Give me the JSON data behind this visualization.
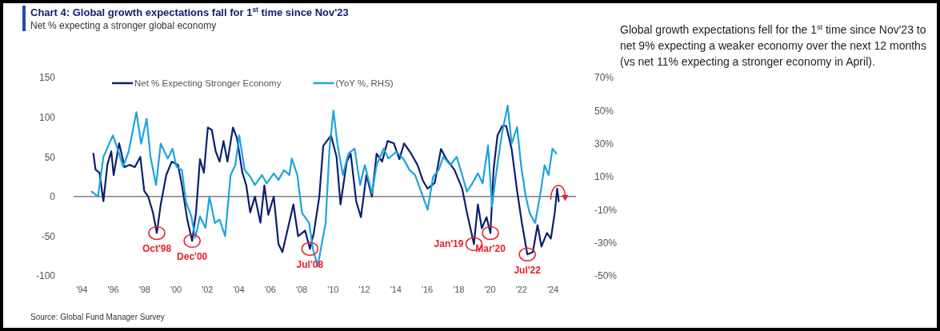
{
  "chart_data": {
    "type": "line",
    "title": "Chart 4: Global growth expectations fall for 1$^{st}$ time since Nov'23",
    "subtitle": "Net % expecting a stronger global economy",
    "xlim": [
      1993.5,
      2025.5
    ],
    "xticks": [
      {
        "value": 1994,
        "label": "'94"
      },
      {
        "value": 1996,
        "label": "'96"
      },
      {
        "value": 1998,
        "label": "'98"
      },
      {
        "value": 2000,
        "label": "'00"
      },
      {
        "value": 2002,
        "label": "'02"
      },
      {
        "value": 2004,
        "label": "'04"
      },
      {
        "value": 2006,
        "label": "'06"
      },
      {
        "value": 2008,
        "label": "'08"
      },
      {
        "value": 2010,
        "label": "'10"
      },
      {
        "value": 2012,
        "label": "'12"
      },
      {
        "value": 2014,
        "label": "'14"
      },
      {
        "value": 2016,
        "label": "'16"
      },
      {
        "value": 2018,
        "label": "'18"
      },
      {
        "value": 2020,
        "label": "'20"
      },
      {
        "value": 2022,
        "label": "'22"
      },
      {
        "value": 2024,
        "label": "'24"
      }
    ],
    "ylim": [
      -100,
      150
    ],
    "yticks": [
      -100,
      -50,
      0,
      50,
      100,
      150
    ],
    "y2lim": [
      -50,
      70
    ],
    "y2ticks": [
      {
        "value": -50,
        "label": "-50%"
      },
      {
        "value": -30,
        "label": "-30%"
      },
      {
        "value": -10,
        "label": "-10%"
      },
      {
        "value": 10,
        "label": "10%"
      },
      {
        "value": 30,
        "label": "30%"
      },
      {
        "value": 50,
        "label": "50%"
      },
      {
        "value": 70,
        "label": "70%"
      }
    ],
    "grid": false,
    "legend": "top",
    "line_style": "solid",
    "marker": "none",
    "ref_lines": [
      {
        "axis": "y",
        "value": 0,
        "color": "#808080"
      }
    ],
    "series": [
      {
        "name": "Net % Expecting Stronger Economy",
        "color": "#0c1f6e",
        "x": [
          1994.76,
          1994.9,
          1995.15,
          1995.4,
          1995.65,
          1995.9,
          1996.05,
          1996.4,
          1996.75,
          1997.05,
          1997.4,
          1997.75,
          1998.0,
          1998.25,
          1998.55,
          1998.8,
          1999.05,
          1999.4,
          1999.75,
          2000.15,
          2000.4,
          2000.75,
          2001.05,
          2001.3,
          2001.55,
          2001.8,
          2002.05,
          2002.3,
          2002.55,
          2002.8,
          2003.05,
          2003.3,
          2003.65,
          2003.9,
          2004.25,
          2004.5,
          2004.75,
          2005.05,
          2005.4,
          2005.65,
          2005.9,
          2006.25,
          2006.55,
          2006.8,
          2007.15,
          2007.5,
          2007.8,
          2008.25,
          2008.55,
          2008.8,
          2009.15,
          2009.4,
          2009.9,
          2010.25,
          2010.5,
          2010.9,
          2011.15,
          2011.5,
          2011.8,
          2012.15,
          2012.5,
          2012.8,
          2013.15,
          2013.5,
          2013.9,
          2014.25,
          2014.55,
          2015.0,
          2015.4,
          2015.75,
          2016.05,
          2016.5,
          2016.9,
          2017.25,
          2017.75,
          2018.25,
          2018.55,
          2019.0,
          2019.25,
          2019.5,
          2019.8,
          2020.05,
          2020.25,
          2020.5,
          2020.8,
          2021.05,
          2021.4,
          2021.75,
          2022.05,
          2022.4,
          2022.75,
          2023.05,
          2023.3,
          2023.65,
          2023.9,
          2024.15,
          2024.3,
          2024.4
        ],
        "values": [
          54,
          34,
          30,
          -6,
          40,
          57,
          27,
          67,
          37,
          40,
          37,
          50,
          7,
          0,
          -20,
          -46,
          -10,
          27,
          44,
          40,
          14,
          -30,
          -56,
          -20,
          47,
          30,
          87,
          84,
          57,
          44,
          70,
          44,
          87,
          74,
          30,
          14,
          -20,
          0,
          -33,
          14,
          -23,
          0,
          -60,
          -70,
          -40,
          -10,
          -50,
          -43,
          -66,
          -46,
          0,
          64,
          77,
          50,
          -10,
          44,
          54,
          -6,
          -26,
          27,
          0,
          54,
          44,
          70,
          67,
          47,
          67,
          54,
          40,
          20,
          10,
          17,
          60,
          47,
          34,
          10,
          -20,
          -60,
          -10,
          -40,
          -26,
          -46,
          34,
          77,
          89,
          89,
          60,
          7,
          -33,
          -73,
          -70,
          -36,
          -63,
          -46,
          -53,
          -20,
          10,
          -6
        ]
      },
      {
        "name": "(YoY %, RHS)",
        "color": "#1fa3de",
        "axis": "y2",
        "x": [
          1994.65,
          1995.05,
          1995.4,
          1996.0,
          1996.3,
          1996.65,
          1997.0,
          1997.5,
          1997.8,
          1998.15,
          1998.4,
          1998.75,
          1999.05,
          1999.5,
          1999.8,
          2000.05,
          2000.4,
          2000.65,
          2001.0,
          2001.25,
          2001.55,
          2001.9,
          2002.15,
          2002.5,
          2002.8,
          2003.15,
          2003.5,
          2003.8,
          2004.05,
          2004.4,
          2004.75,
          2005.05,
          2005.5,
          2005.8,
          2006.25,
          2006.55,
          2006.9,
          2007.25,
          2007.4,
          2007.75,
          2008.05,
          2008.5,
          2008.75,
          2009.05,
          2009.55,
          2009.8,
          2010.05,
          2010.3,
          2010.65,
          2011.0,
          2011.4,
          2011.75,
          2012.05,
          2012.5,
          2012.8,
          2013.25,
          2013.55,
          2014.05,
          2014.5,
          2014.9,
          2015.25,
          2015.75,
          2016.05,
          2016.4,
          2016.75,
          2017.05,
          2017.5,
          2017.9,
          2018.25,
          2018.55,
          2018.9,
          2019.25,
          2019.55,
          2019.9,
          2020.15,
          2020.4,
          2020.8,
          2021.15,
          2021.4,
          2021.75,
          2022.0,
          2022.3,
          2022.55,
          2022.9,
          2023.25,
          2023.5,
          2023.75,
          2024.0,
          2024.25
        ],
        "values": [
          1,
          -2,
          22,
          35,
          27,
          16,
          25,
          49,
          30,
          45,
          22,
          5,
          30,
          21,
          27,
          16,
          14,
          -5,
          -14,
          -27,
          -14,
          -21,
          -2,
          -18,
          -16,
          -26,
          11,
          17,
          35,
          14,
          10,
          5,
          11,
          6,
          12,
          8,
          14,
          11,
          21,
          11,
          -12,
          -18,
          -34,
          -44,
          -18,
          27,
          50,
          30,
          11,
          24,
          27,
          5,
          17,
          0,
          17,
          27,
          21,
          25,
          21,
          14,
          11,
          -2,
          -10,
          10,
          14,
          22,
          17,
          22,
          11,
          1,
          6,
          12,
          6,
          29,
          -8,
          11,
          37,
          53,
          30,
          40,
          17,
          -2,
          -12,
          -18,
          1,
          17,
          11,
          27,
          24
        ]
      }
    ],
    "annotations": [
      {
        "text": "Oct'98",
        "x": 1998.8,
        "y": -46
      },
      {
        "text": "Dec'00",
        "x": 2001.05,
        "y": -56
      },
      {
        "text": "Jul'08",
        "x": 2008.55,
        "y": -66
      },
      {
        "text": "Jan'19",
        "x": 2019.0,
        "y": -60
      },
      {
        "text": "Mar'20",
        "x": 2020.05,
        "y": -46
      },
      {
        "text": "Jul'22",
        "x": 2022.4,
        "y": -73
      },
      "Global growth expectations fell for the 1$^{st}$ time since Nov'23 to net 9% expecting a weaker economy over the next 12 months (vs net 11% expecting a stronger economy in April).",
      "Source: Global Fund Manager Survey"
    ]
  }
}
